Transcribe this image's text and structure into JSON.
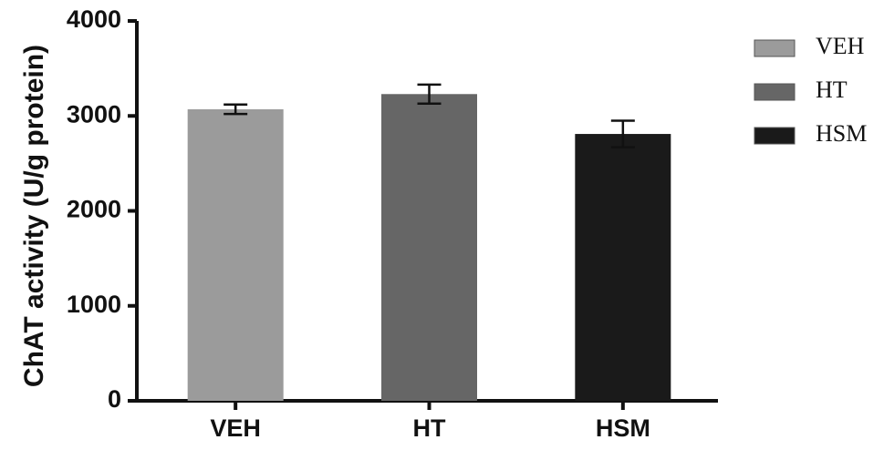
{
  "chart_data": {
    "type": "bar",
    "title": "",
    "xlabel": "",
    "ylabel": "ChAT activity (U/g protein)",
    "ylim": [
      0,
      4000
    ],
    "yticks": [
      0,
      1000,
      2000,
      3000,
      4000
    ],
    "categories": [
      "VEH",
      "HT",
      "HSM"
    ],
    "values": [
      3070,
      3230,
      2810
    ],
    "errors": [
      50,
      100,
      140
    ],
    "colors": [
      "#9b9b9b",
      "#666666",
      "#1a1a1a"
    ],
    "grid": false,
    "legend": {
      "position": "top-right",
      "entries": [
        {
          "label": "VEH",
          "color": "#9b9b9b"
        },
        {
          "label": "HT",
          "color": "#666666"
        },
        {
          "label": "HSM",
          "color": "#1a1a1a"
        }
      ]
    }
  }
}
